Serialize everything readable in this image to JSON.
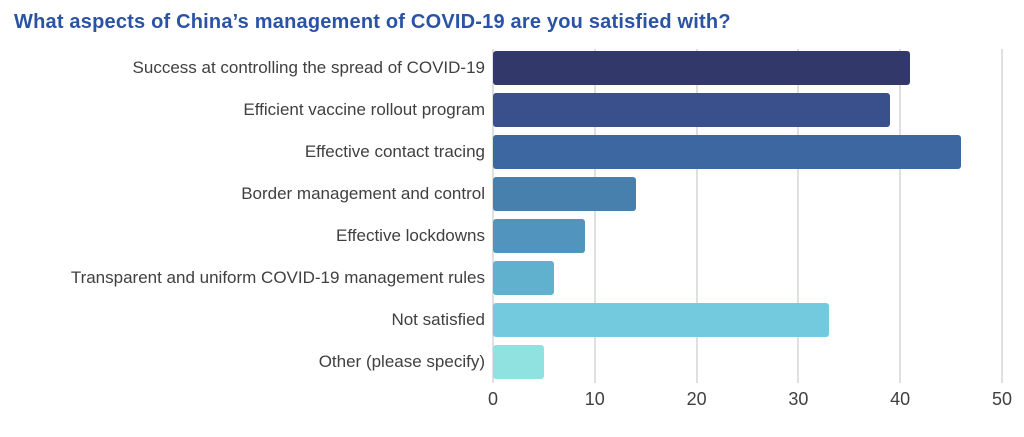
{
  "title": {
    "text": "What aspects of China’s management of COVID-19 are you satisfied with?",
    "color": "#2B53A5"
  },
  "chart_data": {
    "type": "bar",
    "orientation": "horizontal",
    "title": "What aspects of China’s management of COVID-19 are you satisfied with?",
    "categories": [
      "Success at controlling the spread of COVID-19",
      "Efficient vaccine rollout program",
      "Effective contact tracing",
      "Border management and control",
      "Effective lockdowns",
      "Transparent and uniform COVID-19 management rules",
      "Not satisfied",
      "Other (please specify)"
    ],
    "values": [
      41,
      39,
      46,
      14,
      9,
      6,
      33,
      5
    ],
    "bar_colors": [
      "#33386B",
      "#3A508C",
      "#3D67A0",
      "#477FAD",
      "#5194BE",
      "#60B1CE",
      "#73C9DD",
      "#90E2E0"
    ],
    "xlabel": "",
    "ylabel": "",
    "xlim": [
      0,
      50
    ],
    "xticks": [
      0,
      10,
      20,
      30,
      40,
      50
    ],
    "grid": "vertical",
    "gridline_color": "#e0e0e0",
    "label_color": "#404040",
    "legend": "none",
    "background": "#ffffff"
  }
}
